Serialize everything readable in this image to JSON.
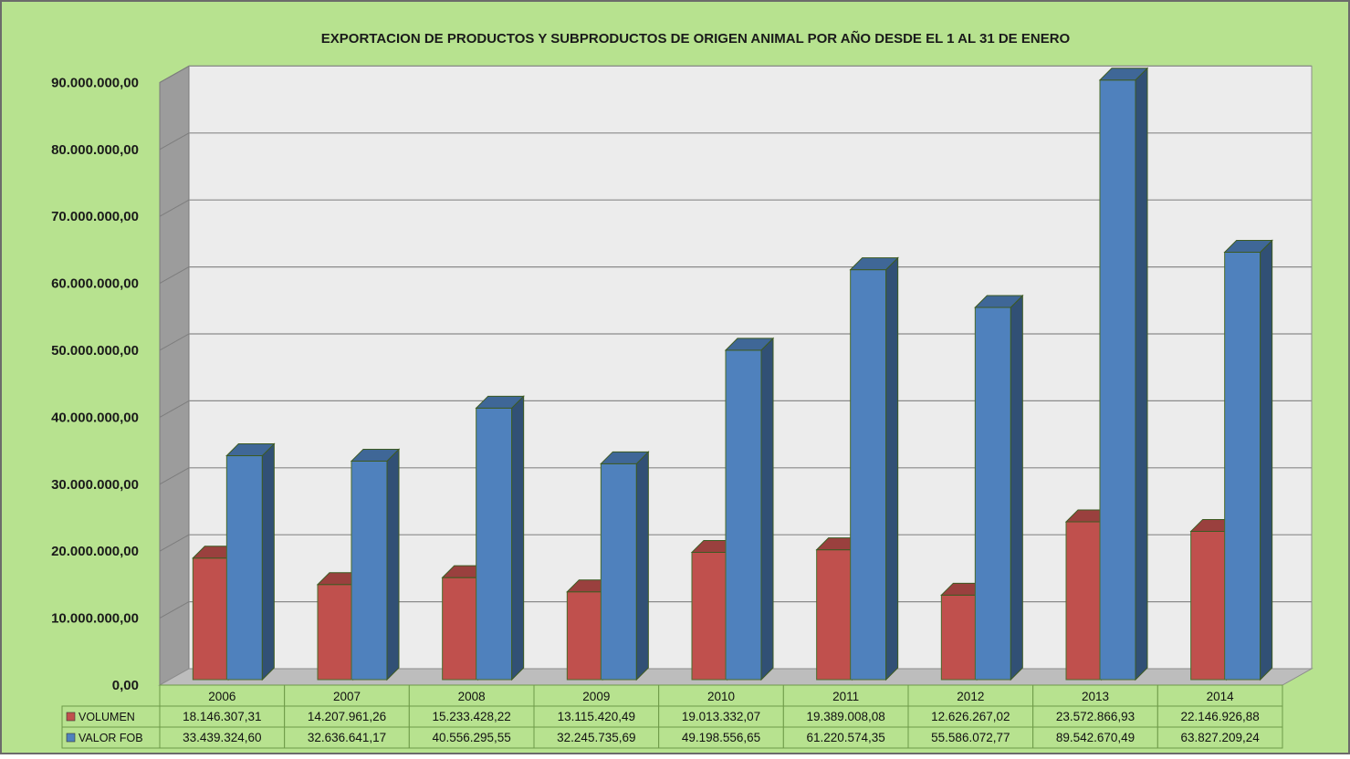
{
  "chart_data": {
    "type": "bar",
    "title": "EXPORTACION DE PRODUCTOS Y SUBPRODUCTOS DE ORIGEN ANIMAL POR AÑO DESDE EL 1  AL 31 DE ENERO",
    "categories": [
      "2006",
      "2007",
      "2008",
      "2009",
      "2010",
      "2011",
      "2012",
      "2013",
      "2014"
    ],
    "series": [
      {
        "name": "VOLUMEN",
        "color": "#c0504d",
        "values": [
          18146307.31,
          14207961.26,
          15233428.22,
          13115420.49,
          19013332.07,
          19389008.08,
          12626267.02,
          23572866.93,
          22146926.88
        ],
        "labels": [
          "18.146.307,31",
          "14.207.961,26",
          "15.233.428,22",
          "13.115.420,49",
          "19.013.332,07",
          "19.389.008,08",
          "12.626.267,02",
          "23.572.866,93",
          "22.146.926,88"
        ]
      },
      {
        "name": "VALOR FOB",
        "color": "#4f81bd",
        "values": [
          33439324.6,
          32636641.17,
          40556295.55,
          32245735.69,
          49198556.65,
          61220574.35,
          55586072.77,
          89542670.49,
          63827209.24
        ],
        "labels": [
          "33.439.324,60",
          "32.636.641,17",
          "40.556.295,55",
          "32.245.735,69",
          "49.198.556,65",
          "61.220.574,35",
          "55.586.072,77",
          "89.542.670,49",
          "63.827.209,24"
        ]
      }
    ],
    "ylim": [
      0,
      90000000
    ],
    "yticks": [
      0,
      10000000,
      20000000,
      30000000,
      40000000,
      50000000,
      60000000,
      70000000,
      80000000,
      90000000
    ],
    "ytick_labels": [
      "0,00",
      "10.000.000,00",
      "20.000.000,00",
      "30.000.000,00",
      "40.000.000,00",
      "50.000.000,00",
      "60.000.000,00",
      "70.000.000,00",
      "80.000.000,00",
      "90.000.000,00"
    ],
    "xlabel": "",
    "ylabel": "",
    "grid": true,
    "three_d": true,
    "data_table": true,
    "background_color": "#b7e28f",
    "plot_wall_color": "#ececec"
  }
}
